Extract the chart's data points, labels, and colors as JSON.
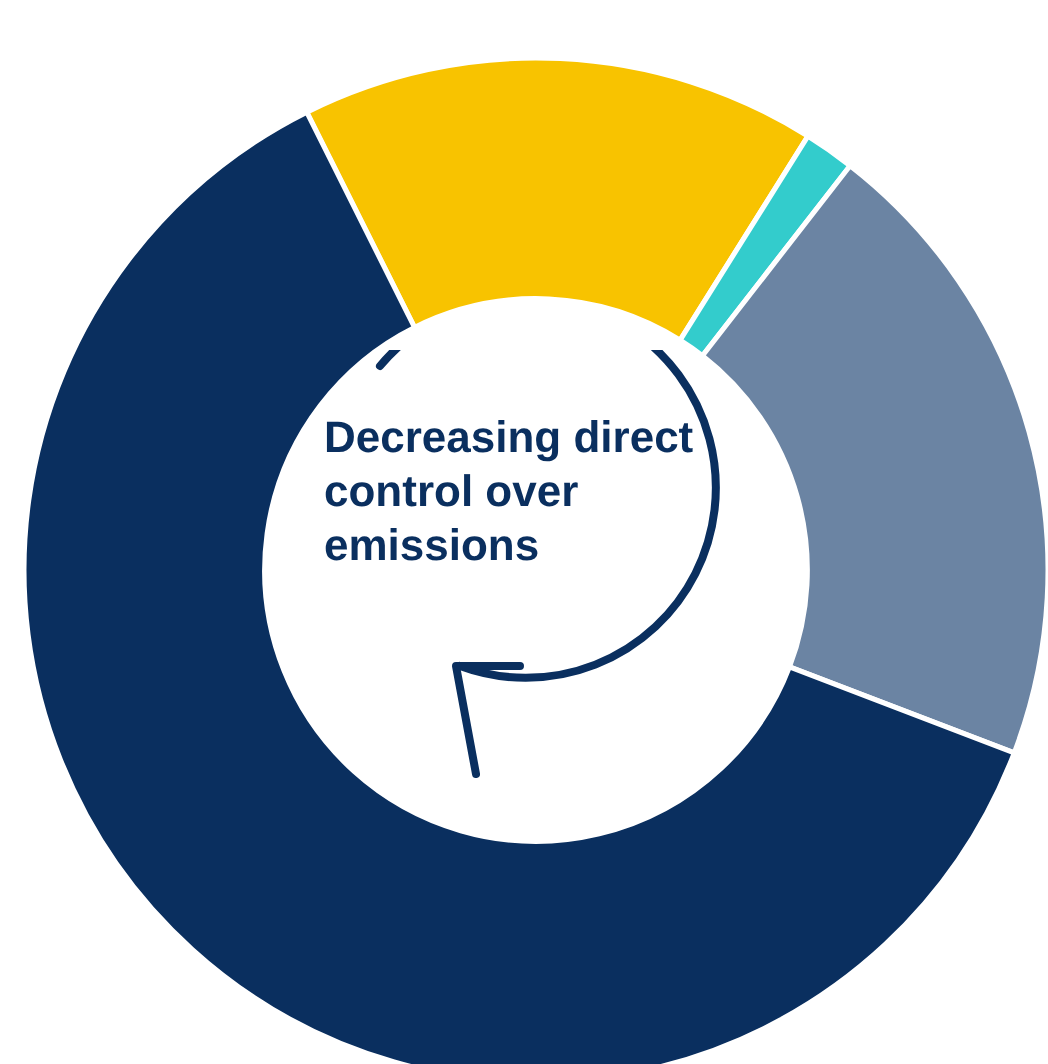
{
  "chart_data": {
    "type": "donut",
    "categories": [
      null,
      null,
      null,
      null
    ],
    "values": [
      16.3,
      1.6,
      20.3,
      61.8
    ],
    "colors": [
      "#f8c300",
      "#33cccc",
      "#6b84a3",
      "#0a2f5f"
    ],
    "annotations": [
      "Decreasing direct control over emissions"
    ],
    "legend": false
  }
}
